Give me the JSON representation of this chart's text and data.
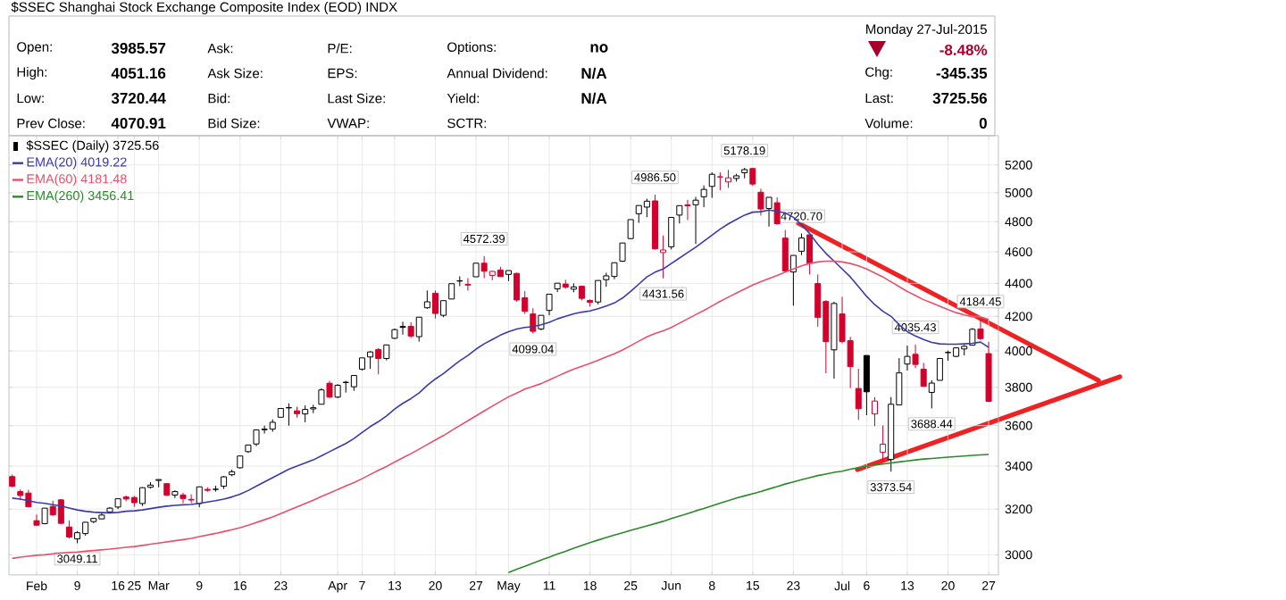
{
  "chart_data": {
    "type": "candlestick",
    "title": "$SSEC Shanghai Stock Exchange Composite Index (EOD) INDX",
    "categories": [
      null,
      null,
      null,
      "Feb",
      null,
      null,
      null,
      null,
      "9",
      null,
      null,
      null,
      null,
      "16",
      null,
      "25",
      null,
      null,
      "Mar",
      null,
      null,
      null,
      null,
      "9",
      null,
      null,
      null,
      null,
      "16",
      null,
      null,
      null,
      null,
      "23",
      null,
      null,
      null,
      null,
      null,
      null,
      "Apr",
      null,
      null,
      "7",
      null,
      null,
      null,
      "13",
      null,
      null,
      null,
      null,
      "20",
      null,
      null,
      null,
      null,
      "27",
      null,
      null,
      null,
      "May",
      null,
      null,
      null,
      null,
      "11",
      null,
      null,
      null,
      null,
      "18",
      null,
      null,
      null,
      null,
      "25",
      null,
      null,
      null,
      null,
      "Jun",
      null,
      null,
      null,
      null,
      "8",
      null,
      null,
      null,
      null,
      "15",
      null,
      null,
      null,
      null,
      "23",
      null,
      null,
      null,
      null,
      null,
      "Jul",
      null,
      null,
      "6",
      null,
      null,
      null,
      null,
      "13",
      null,
      null,
      null,
      null,
      "20",
      null,
      null,
      null,
      null,
      "27"
    ],
    "series": [
      {
        "name": "$SSEC (Daily) 3725.56",
        "ohlc": [
          [
            3350,
            3360,
            3300,
            3305
          ],
          [
            3280,
            3290,
            3240,
            3262
          ],
          [
            3273,
            3288,
            3209,
            3210
          ],
          [
            3148,
            3175,
            3128,
            3128
          ],
          [
            3135,
            3204,
            3132,
            3204
          ],
          [
            3212,
            3238,
            3169,
            3174
          ],
          [
            3242,
            3245,
            3135,
            3136
          ],
          [
            3120,
            3148,
            3070,
            3076
          ],
          [
            3068,
            3102,
            3049.11,
            3095
          ],
          [
            3091,
            3142,
            3082,
            3141
          ],
          [
            3144,
            3160,
            3136,
            3158
          ],
          [
            3156,
            3183,
            3155,
            3173
          ],
          [
            3187,
            3209,
            3180,
            3204
          ],
          [
            3209,
            3248,
            3200,
            3247
          ],
          [
            3255,
            3262,
            3235,
            3246
          ],
          [
            3253,
            3260,
            3210,
            3229
          ],
          [
            3225,
            3300,
            3214,
            3298
          ],
          [
            3300,
            3324,
            3294,
            3310
          ],
          [
            3332,
            3337,
            3300,
            3336
          ],
          [
            3317,
            3318,
            3260,
            3263
          ],
          [
            3264,
            3286,
            3250,
            3280
          ],
          [
            3264,
            3275,
            3227,
            3248
          ],
          [
            3244,
            3267,
            3227,
            3241
          ],
          [
            3225,
            3303,
            3208,
            3302
          ],
          [
            3290,
            3300,
            3279,
            3286
          ],
          [
            3290,
            3307,
            3280,
            3291
          ],
          [
            3305,
            3353,
            3292,
            3349
          ],
          [
            3359,
            3383,
            3352,
            3373
          ],
          [
            3392,
            3450,
            3388,
            3449
          ],
          [
            3470,
            3503,
            3464,
            3503
          ],
          [
            3508,
            3578,
            3497,
            3578
          ],
          [
            3579,
            3600,
            3560,
            3582
          ],
          [
            3582,
            3632,
            3569,
            3617
          ],
          [
            3643,
            3689,
            3642,
            3688
          ],
          [
            3693,
            3715,
            3600,
            3691
          ],
          [
            3676,
            3697,
            3641,
            3661
          ],
          [
            3660,
            3704,
            3617,
            3683
          ],
          [
            3686,
            3708,
            3664,
            3692
          ],
          [
            3710,
            3795,
            3710,
            3786
          ],
          [
            3822,
            3835,
            3744,
            3748
          ],
          [
            3748,
            3817,
            3742,
            3811
          ],
          [
            3827,
            3835,
            3772,
            3826
          ],
          [
            3803,
            3864,
            3781,
            3864
          ],
          [
            3899,
            3961,
            3891,
            3961
          ],
          [
            3966,
            3999,
            3901,
            3995
          ],
          [
            4008,
            4016,
            3870,
            3958
          ],
          [
            3958,
            4034,
            3947,
            4034
          ],
          [
            4072,
            4128,
            4067,
            4122
          ],
          [
            4140,
            4168,
            4093,
            4135
          ],
          [
            4141,
            4165,
            4073,
            4085
          ],
          [
            4081,
            4195,
            4053,
            4195
          ],
          [
            4251,
            4356,
            4245,
            4287
          ],
          [
            4339,
            4356,
            4187,
            4217
          ],
          [
            4206,
            4294,
            4195,
            4294
          ],
          [
            4304,
            4398,
            4304,
            4398
          ],
          [
            4416,
            4444,
            4383,
            4414
          ],
          [
            4389,
            4433,
            4355,
            4394
          ],
          [
            4441,
            4529,
            4441,
            4527
          ],
          [
            4527,
            4572.39,
            4432,
            4476
          ],
          [
            4450,
            4477,
            4419,
            4475
          ],
          [
            4483,
            4504,
            4441,
            4442
          ],
          [
            4456,
            4481,
            4414,
            4480
          ],
          [
            4462,
            4467,
            4288,
            4298
          ],
          [
            4312,
            4352,
            4214,
            4230
          ],
          [
            4214,
            4248,
            4099.04,
            4112
          ],
          [
            4126,
            4206,
            4118,
            4206
          ],
          [
            4235,
            4334,
            4207,
            4333
          ],
          [
            4366,
            4401,
            4346,
            4401
          ],
          [
            4396,
            4422,
            4367,
            4376
          ],
          [
            4364,
            4400,
            4345,
            4378
          ],
          [
            4382,
            4386,
            4296,
            4308
          ],
          [
            4295,
            4302,
            4259,
            4284
          ],
          [
            4286,
            4418,
            4271,
            4418
          ],
          [
            4423,
            4466,
            4379,
            4447
          ],
          [
            4443,
            4530,
            4426,
            4530
          ],
          [
            4540,
            4658,
            4536,
            4658
          ],
          [
            4687,
            4814,
            4683,
            4814
          ],
          [
            4854,
            4911,
            4792,
            4911
          ],
          [
            4900,
            4958,
            4831,
            4941
          ],
          [
            4943,
            4986.5,
            4614,
            4620
          ],
          [
            4595,
            4708,
            4431.56,
            4612
          ],
          [
            4633,
            4829,
            4616,
            4829
          ],
          [
            4845,
            4911,
            4788,
            4910
          ],
          [
            4916,
            4951,
            4811,
            4909
          ],
          [
            4916,
            4971,
            4652,
            4948
          ],
          [
            4972,
            5052,
            4899,
            5024
          ],
          [
            5045,
            5146,
            4965,
            5132
          ],
          [
            5113,
            5147,
            5018,
            5114
          ],
          [
            5077,
            5164,
            5035,
            5106
          ],
          [
            5102,
            5136,
            5080,
            5121
          ],
          [
            5143,
            5178.19,
            5103,
            5166
          ],
          [
            5174,
            5176,
            5048,
            5062
          ],
          [
            5004,
            5029,
            4842,
            4887
          ],
          [
            4890,
            4968,
            4767,
            4968
          ],
          [
            4930,
            4967,
            4780,
            4786
          ],
          [
            4690,
            4744,
            4476,
            4478
          ],
          [
            4471,
            4577,
            4264,
            4577
          ],
          [
            4604,
            4720.7,
            4579,
            4691
          ],
          [
            4712,
            4713,
            4456,
            4527
          ],
          [
            4399,
            4456,
            4139,
            4193
          ],
          [
            4289,
            4297,
            3876,
            4053
          ],
          [
            4006,
            4287,
            3847,
            4277
          ],
          [
            4214,
            4317,
            4043,
            4054
          ],
          [
            4058,
            4080,
            3796,
            3913
          ],
          [
            3794,
            3901,
            3630,
            3687
          ],
          [
            3975,
            3975,
            3653,
            3776
          ],
          [
            3660,
            3748,
            3597,
            3727
          ],
          [
            3467,
            3600,
            3421,
            3507
          ],
          [
            3432,
            3748,
            3373.54,
            3710
          ],
          [
            3707,
            3960,
            3707,
            3878
          ],
          [
            3927,
            4030,
            3891,
            3970
          ],
          [
            3981,
            4035.43,
            3904,
            3925
          ],
          [
            3899,
            3934,
            3804,
            3805
          ],
          [
            3773,
            3838,
            3688.44,
            3823
          ],
          [
            3838,
            3961,
            3838,
            3958
          ],
          [
            3991,
            4002,
            3946,
            3992
          ],
          [
            3970,
            4021,
            3965,
            4017
          ],
          [
            4011,
            4034,
            3975,
            4026
          ],
          [
            4032,
            4131,
            4031,
            4124
          ],
          [
            4126,
            4184.45,
            4062,
            4070
          ],
          [
            3985.57,
            4051.16,
            3720.44,
            3725.56
          ]
        ],
        "colors": [
          "#d4002c",
          "#d4002c",
          "#d4002c",
          "#d4002c",
          "#000000",
          "#d4002c",
          "#d4002c",
          "#d4002c",
          "#000000",
          "#000000",
          "#000000",
          "#000000",
          "#000000",
          "#000000",
          "#d4002c",
          "#d4002c",
          "#000000",
          "#000000",
          "#000000",
          "#d4002c",
          "#000000",
          "#d4002c",
          "#d4002c",
          "#000000",
          "#d4002c",
          "#000000",
          "#000000",
          "#000000",
          "#000000",
          "#000000",
          "#000000",
          "#000000",
          "#000000",
          "#000000",
          "#000000",
          "#d4002c",
          "#000000",
          "#000000",
          "#000000",
          "#d4002c",
          "#000000",
          "#000000",
          "#000000",
          "#000000",
          "#000000",
          "#d4002c",
          "#000000",
          "#000000",
          "#000000",
          "#d4002c",
          "#000000",
          "#000000",
          "#d4002c",
          "#000000",
          "#000000",
          "#000000",
          "#d4002c",
          "#000000",
          "#d4002c",
          "#d4002c",
          "#d4002c",
          "#000000",
          "#d4002c",
          "#d4002c",
          "#d4002c",
          "#000000",
          "#000000",
          "#000000",
          "#d4002c",
          "#000000",
          "#d4002c",
          "#d4002c",
          "#000000",
          "#000000",
          "#000000",
          "#000000",
          "#000000",
          "#000000",
          "#000000",
          "#d4002c",
          "#d4002c",
          "#000000",
          "#000000",
          "#d4002c",
          "#000000",
          "#000000",
          "#000000",
          "#d4002c",
          "#d4002c",
          "#000000",
          "#000000",
          "#d4002c",
          "#d4002c",
          "#000000",
          "#d4002c",
          "#d4002c",
          "#000000",
          "#000000",
          "#d4002c",
          "#d4002c",
          "#d4002c",
          "#000000",
          "#d4002c",
          "#d4002c",
          "#d4002c",
          "#000000",
          "#d4002c",
          "#d4002c",
          "#000000",
          "#000000",
          "#000000",
          "#d4002c",
          "#d4002c",
          "#000000",
          "#000000",
          "#000000",
          "#000000",
          "#000000",
          "#000000",
          "#d4002c",
          "#d4002c"
        ]
      },
      {
        "type": "line",
        "name": "EMA(20) 4019.22",
        "color": "#3a3ab0",
        "values": [
          3250,
          3245,
          3238,
          3230,
          3226,
          3220,
          3214,
          3205,
          3196,
          3190,
          3186,
          3184,
          3183,
          3185,
          3190,
          3192,
          3196,
          3202,
          3208,
          3213,
          3217,
          3219,
          3221,
          3226,
          3232,
          3238,
          3245,
          3255,
          3268,
          3285,
          3305,
          3325,
          3345,
          3365,
          3385,
          3400,
          3415,
          3430,
          3450,
          3470,
          3490,
          3510,
          3535,
          3565,
          3595,
          3620,
          3650,
          3685,
          3715,
          3740,
          3770,
          3810,
          3845,
          3875,
          3910,
          3945,
          3975,
          4010,
          4040,
          4065,
          4090,
          4110,
          4125,
          4135,
          4140,
          4150,
          4165,
          4185,
          4200,
          4215,
          4225,
          4232,
          4245,
          4262,
          4280,
          4310,
          4350,
          4395,
          4440,
          4470,
          4490,
          4525,
          4560,
          4595,
          4630,
          4670,
          4710,
          4750,
          4785,
          4815,
          4845,
          4865,
          4868,
          4880,
          4870,
          4860,
          4830,
          4780,
          4720,
          4650,
          4590,
          4540,
          4490,
          4440,
          4380,
          4320,
          4270,
          4230,
          4200,
          4150,
          4110,
          4085,
          4065,
          4048,
          4040,
          4038,
          4038,
          4040,
          4043,
          4050,
          4019.22
        ]
      },
      {
        "type": "line",
        "name": "EMA(60) 4181.48",
        "color": "#e8506a",
        "values": [
          2985,
          2990,
          2994,
          2998,
          3000,
          3004,
          3007,
          3010,
          3012,
          3015,
          3018,
          3021,
          3024,
          3028,
          3032,
          3035,
          3040,
          3045,
          3050,
          3055,
          3060,
          3065,
          3070,
          3078,
          3085,
          3092,
          3100,
          3108,
          3117,
          3128,
          3140,
          3152,
          3165,
          3180,
          3195,
          3210,
          3225,
          3240,
          3257,
          3273,
          3290,
          3306,
          3322,
          3340,
          3360,
          3380,
          3398,
          3420,
          3440,
          3460,
          3482,
          3505,
          3528,
          3550,
          3575,
          3600,
          3625,
          3650,
          3675,
          3700,
          3725,
          3750,
          3770,
          3790,
          3805,
          3820,
          3840,
          3860,
          3880,
          3898,
          3915,
          3930,
          3948,
          3966,
          3985,
          4005,
          4030,
          4055,
          4080,
          4100,
          4115,
          4135,
          4160,
          4185,
          4210,
          4235,
          4262,
          4290,
          4315,
          4340,
          4365,
          4390,
          4410,
          4430,
          4450,
          4470,
          4490,
          4510,
          4525,
          4535,
          4540,
          4540,
          4535,
          4525,
          4510,
          4490,
          4465,
          4440,
          4410,
          4380,
          4350,
          4325,
          4300,
          4280,
          4260,
          4240,
          4222,
          4208,
          4198,
          4196,
          4181.48
        ]
      },
      {
        "type": "line",
        "name": "EMA(260) 3456.41",
        "color": "#2a8a2a",
        "values": [
          null,
          null,
          null,
          null,
          null,
          null,
          null,
          null,
          null,
          null,
          null,
          null,
          null,
          null,
          null,
          null,
          null,
          null,
          null,
          null,
          null,
          null,
          null,
          null,
          null,
          null,
          null,
          null,
          null,
          null,
          null,
          null,
          null,
          null,
          null,
          null,
          null,
          null,
          null,
          null,
          null,
          null,
          null,
          null,
          null,
          null,
          null,
          null,
          null,
          null,
          null,
          null,
          null,
          null,
          null,
          null,
          null,
          null,
          null,
          null,
          null,
          2926,
          2940,
          2952,
          2965,
          2978,
          2990,
          3003,
          3015,
          3028,
          3040,
          3052,
          3063,
          3074,
          3085,
          3095,
          3105,
          3115,
          3125,
          3135,
          3145,
          3157,
          3168,
          3180,
          3192,
          3203,
          3215,
          3227,
          3238,
          3250,
          3260,
          3270,
          3280,
          3292,
          3303,
          3315,
          3325,
          3335,
          3345,
          3355,
          3362,
          3370,
          3376,
          3385,
          3392,
          3400,
          3405,
          3410,
          3415,
          3420,
          3425,
          3430,
          3434,
          3437,
          3440,
          3443,
          3446,
          3449,
          3452,
          3454,
          3456.41
        ]
      }
    ],
    "ylim": [
      2916,
      5420
    ],
    "yticks": [
      3000,
      3200,
      3400,
      3600,
      3800,
      4000,
      4200,
      4400,
      4600,
      4800,
      5000,
      5200
    ],
    "log": true,
    "grid": true,
    "legend": "top left",
    "annotations": [
      "Open:",
      "3985.57",
      "Ask:",
      "P/E:",
      "Options:",
      "no",
      "High:",
      "4051.16",
      "Ask Size:",
      "EPS:",
      "Annual Dividend:",
      "N/A",
      "Low:",
      "3720.44",
      "Bid:",
      "Last Size:",
      "Yield:",
      "N/A",
      "Prev Close:",
      "4070.91",
      "Bid Size:",
      "VWAP:",
      "SCTR:",
      "Monday 27-Jul-2015",
      "-8.48%",
      "Chg:",
      "-345.35",
      "Last:",
      "3725.56",
      "Volume:",
      "0",
      {
        "text": "3049.11",
        "y": 3049.11
      },
      {
        "text": "4572.39",
        "y": 4572.39
      },
      {
        "text": "4099.04",
        "y": 4099.04
      },
      {
        "text": "4986.50",
        "y": 4986.5
      },
      {
        "text": "4431.56",
        "y": 4431.56
      },
      {
        "text": "5178.19",
        "y": 5178.19
      },
      {
        "text": "4720.70",
        "y": 4720.7
      },
      {
        "text": "4035.43",
        "y": 4035.43
      },
      {
        "text": "3688.44",
        "y": 3688.44
      },
      {
        "text": "3373.54",
        "y": 3373.54
      },
      {
        "text": "4184.45",
        "y": 4184.45
      }
    ]
  }
}
